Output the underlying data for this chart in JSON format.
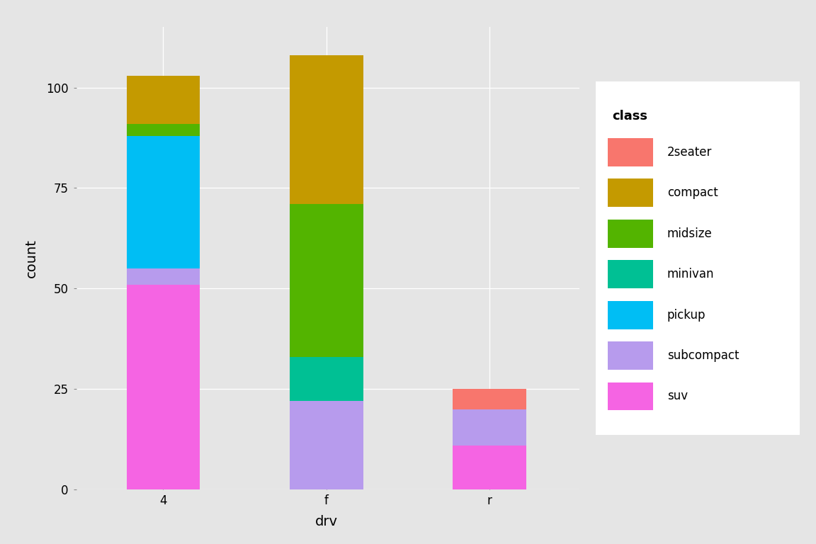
{
  "categories": [
    "4",
    "f",
    "r"
  ],
  "classes": [
    "suv",
    "subcompact",
    "pickup",
    "minivan",
    "midsize",
    "compact",
    "2seater"
  ],
  "colors": {
    "suv": "#F564E3",
    "subcompact": "#B79BED",
    "pickup": "#00BEF4",
    "minivan": "#00C094",
    "midsize": "#53B400",
    "compact": "#C49A00",
    "2seater": "#F8766D"
  },
  "legend_labels": [
    "2seater",
    "compact",
    "midsize",
    "minivan",
    "pickup",
    "subcompact",
    "suv"
  ],
  "legend_colors": {
    "2seater": "#F8766D",
    "compact": "#C49A00",
    "midsize": "#53B400",
    "minivan": "#00C094",
    "pickup": "#00BEF4",
    "subcompact": "#B79BED",
    "suv": "#F564E3"
  },
  "data": {
    "4": {
      "suv": 51,
      "subcompact": 4,
      "pickup": 33,
      "minivan": 0,
      "midsize": 3,
      "compact": 12,
      "2seater": 0
    },
    "f": {
      "suv": 0,
      "subcompact": 22,
      "pickup": 0,
      "minivan": 11,
      "midsize": 38,
      "compact": 37,
      "2seater": 0
    },
    "r": {
      "suv": 11,
      "subcompact": 9,
      "pickup": 0,
      "minivan": 0,
      "midsize": 0,
      "compact": 0,
      "2seater": 5
    }
  },
  "xlabel": "drv",
  "ylabel": "count",
  "legend_title": "class",
  "background_color": "#E5E5E5",
  "panel_background": "#E5E5E5",
  "grid_color": "#FFFFFF",
  "bar_width": 0.45,
  "ylim": [
    0,
    115
  ],
  "yticks": [
    0,
    25,
    50,
    75,
    100
  ],
  "axis_fontsize": 14,
  "tick_fontsize": 12,
  "legend_fontsize": 12,
  "legend_title_fontsize": 13
}
